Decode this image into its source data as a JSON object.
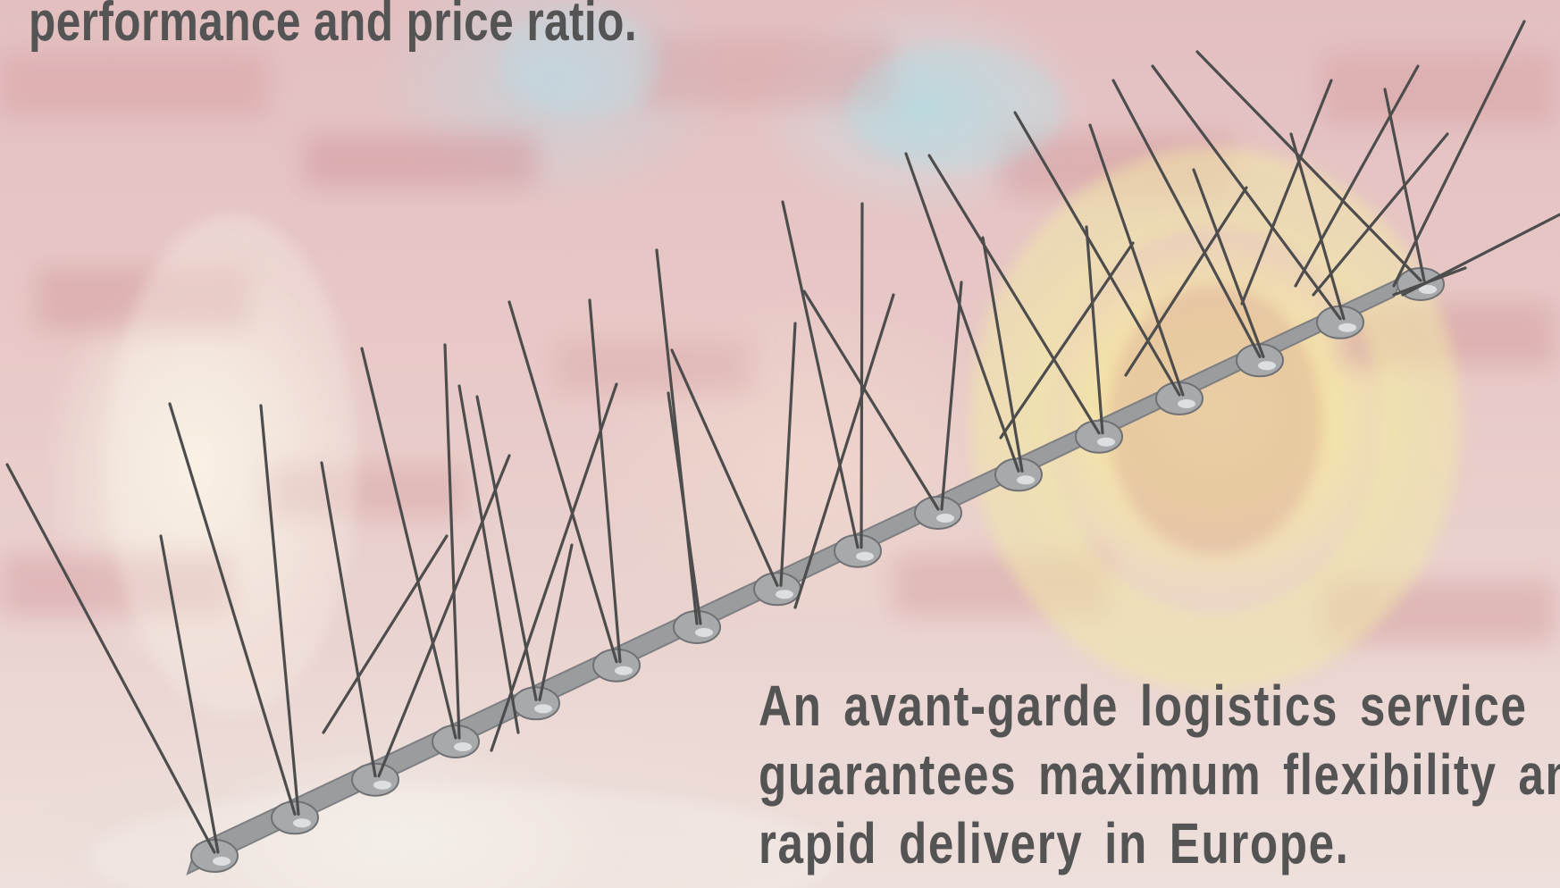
{
  "text": {
    "top_line": "performance and price ratio.",
    "bottom_paragraph": "An avant-garde logistics service guarantees maximum flexibility and rapid delivery in Europe."
  },
  "colors": {
    "text": "#545454",
    "spike_wire": "#4d4d4d",
    "base_strip": "#9a9c9e",
    "background": "#e9cfcf"
  },
  "image": {
    "subject": "bird-spike-strip"
  }
}
